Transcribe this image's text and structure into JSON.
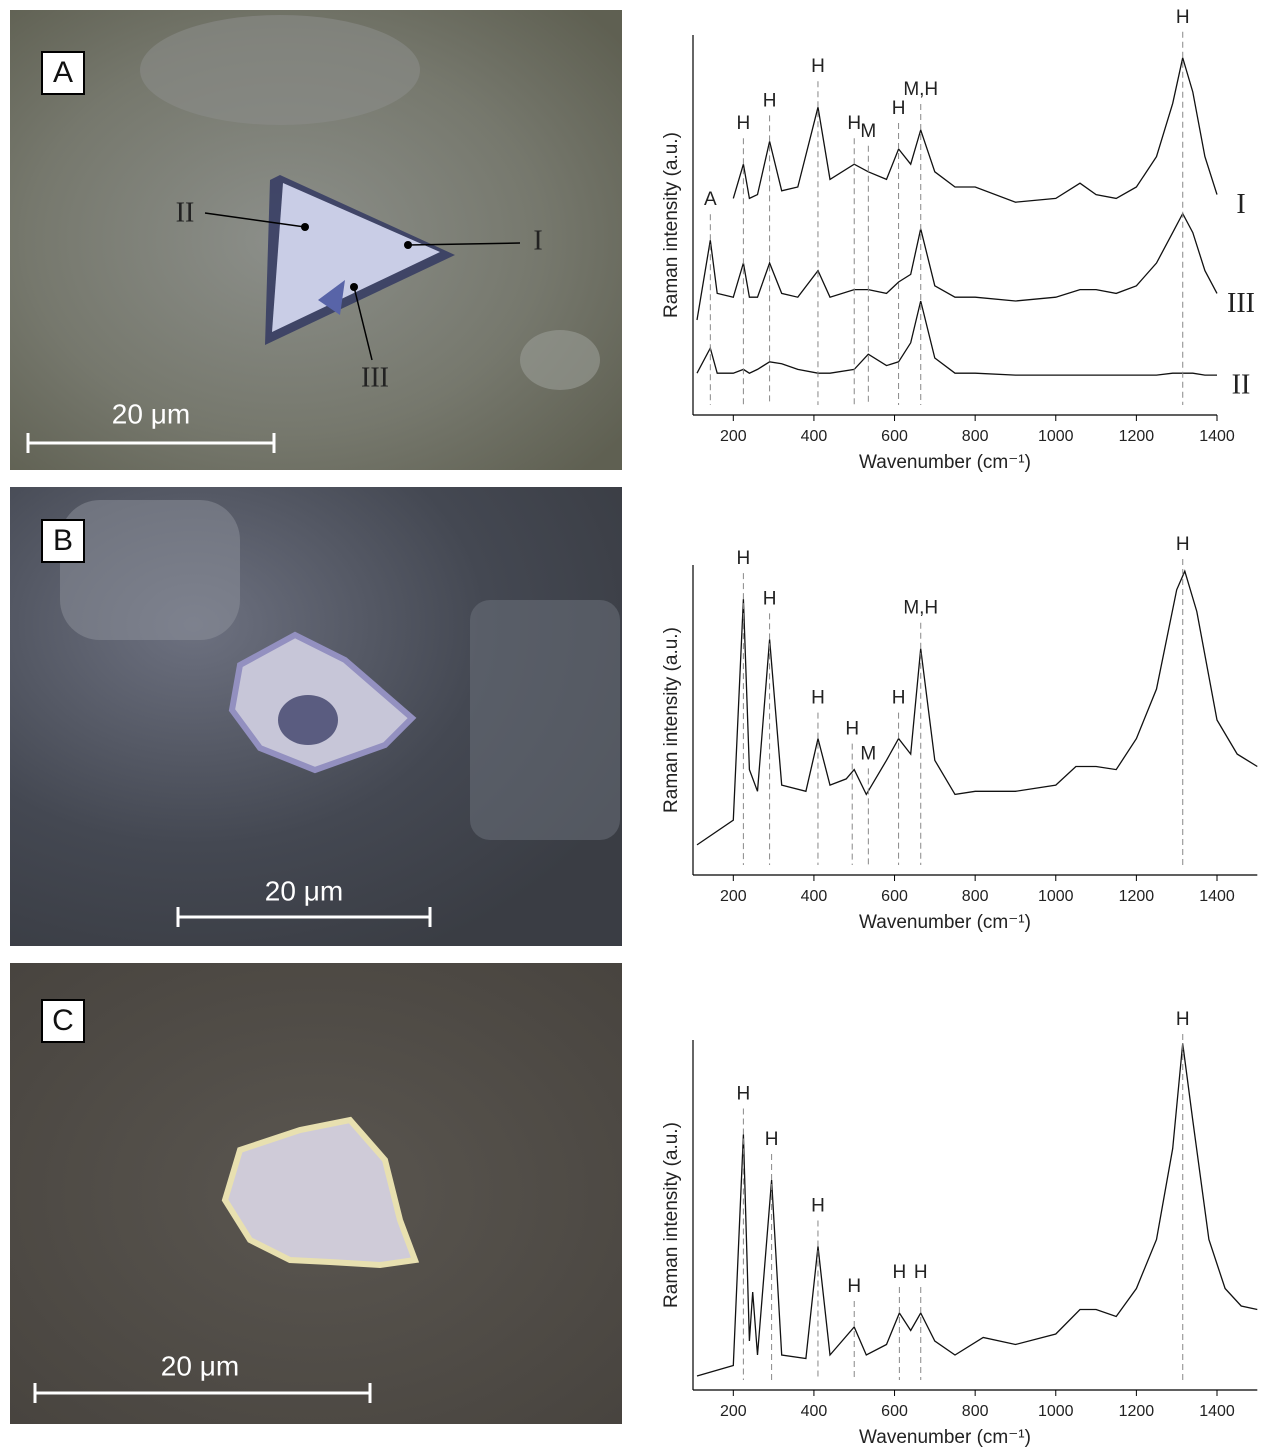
{
  "chart_data": [
    {
      "type": "line",
      "x_label": "Wavenumber (cm⁻¹)",
      "y_label": "Raman intensity (a.u.)",
      "xlim": [
        100,
        1400
      ],
      "ylim": [
        0,
        100
      ],
      "xticks": [
        200,
        400,
        600,
        800,
        1000,
        1200,
        1400
      ],
      "x": [
        110,
        143,
        160,
        200,
        225,
        240,
        260,
        290,
        320,
        360,
        410,
        440,
        500,
        535,
        580,
        610,
        640,
        665,
        700,
        750,
        800,
        900,
        1000,
        1060,
        1100,
        1150,
        1200,
        1250,
        1290,
        1315,
        1340,
        1370,
        1400
      ],
      "series": [
        {
          "name": "I",
          "color": "#111111",
          "values": [
            null,
            null,
            null,
            57,
            66,
            57,
            58,
            72,
            59,
            60,
            81,
            62,
            66,
            64,
            62,
            70,
            66,
            75,
            64,
            60,
            60,
            56,
            57,
            61,
            58,
            57,
            60,
            68,
            82,
            94,
            85,
            68,
            58
          ]
        },
        {
          "name": "III",
          "color": "#111111",
          "values": [
            25,
            46,
            32,
            31,
            40,
            31,
            31,
            40,
            32,
            31,
            38,
            31,
            33,
            33,
            32,
            35,
            37,
            49,
            34,
            31,
            31,
            30,
            31,
            33,
            33,
            32,
            34,
            40,
            48,
            53,
            48,
            38,
            32
          ]
        },
        {
          "name": "II",
          "color": "#111111",
          "values": [
            11,
            17.6,
            11,
            11,
            12,
            11,
            12,
            14,
            13.5,
            12,
            11,
            11,
            12,
            16,
            13,
            14,
            19,
            30,
            15,
            11,
            11,
            10.5,
            10.5,
            10.5,
            10.5,
            10.5,
            10.5,
            10.5,
            11,
            11,
            11,
            10.5,
            10.5
          ]
        }
      ],
      "annotations": [
        {
          "text": "A",
          "x": 143
        },
        {
          "text": "H",
          "x": 225
        },
        {
          "text": "H",
          "x": 290
        },
        {
          "text": "H",
          "x": 410
        },
        {
          "text": "H",
          "x": 500
        },
        {
          "text": "M",
          "x": 535
        },
        {
          "text": "H",
          "x": 610
        },
        {
          "text": "M,H",
          "x": 665
        },
        {
          "text": "H",
          "x": 1315
        }
      ]
    },
    {
      "type": "line",
      "x_label": "Wavenumber (cm⁻¹)",
      "y_label": "Raman intensity (a.u.)",
      "xlim": [
        100,
        1500
      ],
      "ylim": [
        0,
        100
      ],
      "xticks": [
        200,
        400,
        600,
        800,
        1000,
        1200,
        1400
      ],
      "x": [
        110,
        200,
        225,
        240,
        260,
        290,
        320,
        380,
        410,
        440,
        480,
        500,
        530,
        580,
        610,
        640,
        665,
        700,
        750,
        800,
        900,
        1000,
        1050,
        1100,
        1150,
        1200,
        1250,
        1300,
        1320,
        1350,
        1400,
        1450,
        1500
      ],
      "series": [
        {
          "name": "spectrum",
          "color": "#111111",
          "values": [
            9.7,
            17.7,
            89,
            34,
            27,
            76,
            29,
            27,
            44,
            29,
            31,
            34,
            26,
            37,
            44,
            39,
            73,
            37,
            26,
            27,
            27,
            29,
            35,
            35,
            34,
            44,
            60,
            92,
            98,
            85,
            50,
            39,
            35
          ]
        }
      ],
      "annotations": [
        {
          "text": "H",
          "x": 225
        },
        {
          "text": "H",
          "x": 290
        },
        {
          "text": "H",
          "x": 410
        },
        {
          "text": "H",
          "x": 495
        },
        {
          "text": "M",
          "x": 535
        },
        {
          "text": "H",
          "x": 610
        },
        {
          "text": "M,H",
          "x": 665
        },
        {
          "text": "H",
          "x": 1315
        }
      ]
    },
    {
      "type": "line",
      "x_label": "Wavenumber (cm⁻¹)",
      "y_label": "Raman intensity (a.u.)",
      "xlim": [
        100,
        1500
      ],
      "ylim": [
        0,
        100
      ],
      "xticks": [
        200,
        400,
        600,
        800,
        1000,
        1200,
        1400
      ],
      "x": [
        110,
        200,
        225,
        240,
        248,
        260,
        295,
        320,
        380,
        410,
        440,
        500,
        530,
        580,
        612,
        640,
        665,
        700,
        750,
        820,
        900,
        1000,
        1060,
        1100,
        1150,
        1200,
        1250,
        1290,
        1315,
        1340,
        1380,
        1420,
        1460,
        1500
      ],
      "series": [
        {
          "name": "spectrum",
          "color": "#111111",
          "values": [
            4,
            7,
            73,
            14,
            28,
            10,
            60,
            10,
            9,
            41,
            10,
            18,
            10,
            13,
            22,
            17,
            22,
            14,
            10,
            15,
            13,
            16,
            23,
            23,
            21,
            29,
            43,
            69,
            99,
            77,
            43,
            29,
            24,
            23
          ]
        }
      ],
      "annotations": [
        {
          "text": "H",
          "x": 225
        },
        {
          "text": "H",
          "x": 295
        },
        {
          "text": "H",
          "x": 410
        },
        {
          "text": "H",
          "x": 500
        },
        {
          "text": "H",
          "x": 612
        },
        {
          "text": "H",
          "x": 665
        },
        {
          "text": "H",
          "x": 1315
        }
      ]
    }
  ],
  "images": [
    {
      "label": "A",
      "scale_bar": "20 μm",
      "markers": [
        "I",
        "II",
        "III"
      ]
    },
    {
      "label": "B",
      "scale_bar": "20 μm"
    },
    {
      "label": "C",
      "scale_bar": "20 μm"
    }
  ]
}
